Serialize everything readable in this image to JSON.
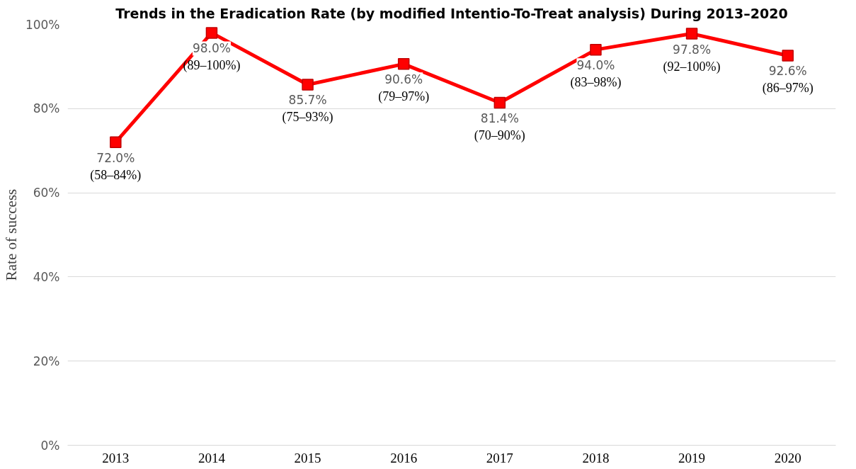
{
  "chart_data": {
    "type": "line",
    "title": "Trends in the Eradication Rate (by modified Intentio-To-Treat analysis) During 2013–2020",
    "ylabel": "Rate of success",
    "categories": [
      "2013",
      "2014",
      "2015",
      "2016",
      "2017",
      "2018",
      "2019",
      "2020"
    ],
    "series": [
      {
        "color": "#ff0000",
        "values": [
          72.0,
          98.0,
          85.7,
          90.6,
          81.4,
          94.0,
          97.8,
          92.6
        ],
        "value_labels": [
          "72.0%\n(58–84%)",
          "98.0%\n(89–100%)",
          "85.7%\n(75–93%)",
          "90.6%\n(79–97%)",
          "81.4%\n(70–90%)",
          "94.0%\n(83–98%)",
          "97.8%\n(92–100%)",
          "92.6%\n(86–97%)"
        ]
      }
    ],
    "ylim": [
      0,
      100
    ],
    "yticks": [
      {
        "value": 0,
        "label": "0%"
      },
      {
        "value": 20,
        "label": "20%"
      },
      {
        "value": 40,
        "label": "40%"
      },
      {
        "value": 60,
        "label": "60%"
      },
      {
        "value": 80,
        "label": "80%"
      },
      {
        "value": 100,
        "label": "100%"
      }
    ],
    "grid": "y",
    "marker": "square",
    "line_style": "solid"
  }
}
